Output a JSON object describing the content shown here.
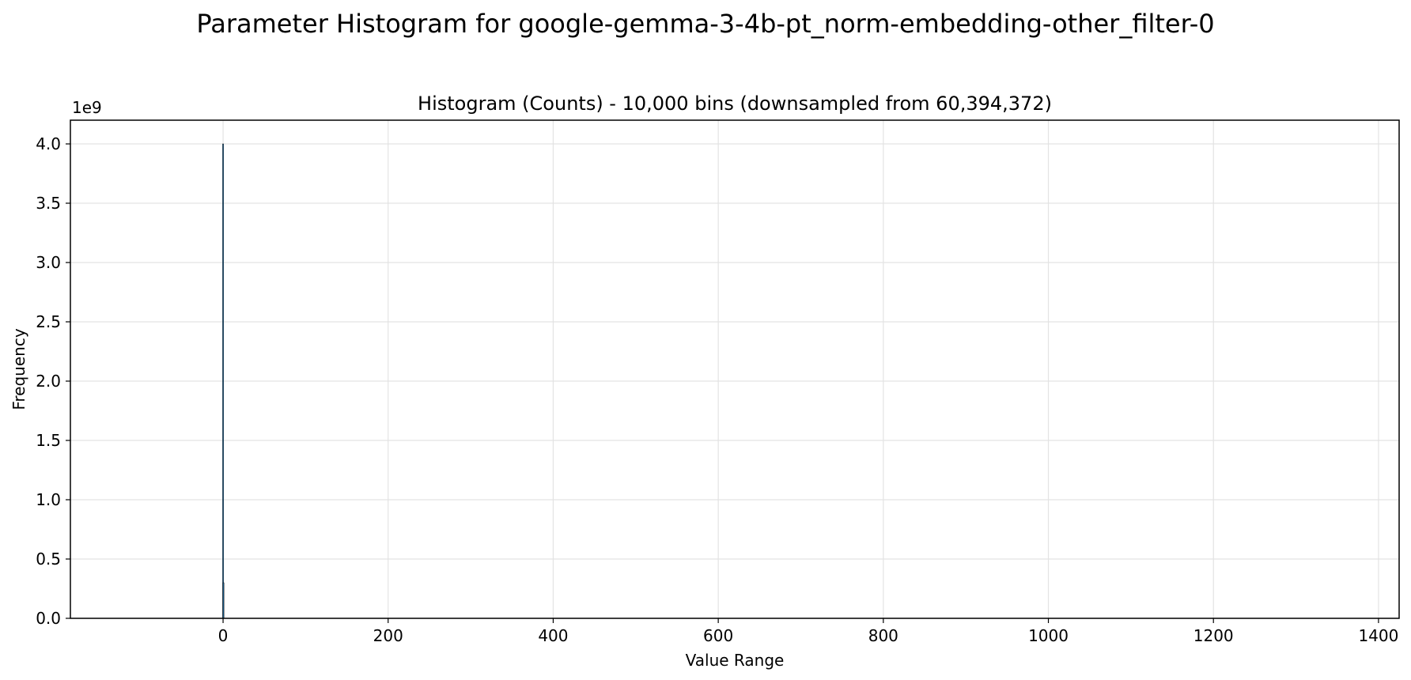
{
  "figure": {
    "title": "Parameter Histogram for google-gemma-3-4b-pt_norm-embedding-other_filter-0"
  },
  "chart_data": {
    "type": "bar",
    "title": "Histogram (Counts) - 10,000 bins (downsampled from 60,394,372)",
    "xlabel": "Value Range",
    "ylabel": "Frequency",
    "y_offset_label": "1e9",
    "xlim": [
      -185,
      1425
    ],
    "ylim": [
      0,
      4200000000
    ],
    "x_ticks": [
      0,
      200,
      400,
      600,
      800,
      1000,
      1200,
      1400
    ],
    "x_tick_labels": [
      "0",
      "200",
      "400",
      "600",
      "800",
      "1000",
      "1200",
      "1400"
    ],
    "y_ticks": [
      0,
      500000000,
      1000000000,
      1500000000,
      2000000000,
      2500000000,
      3000000000,
      3500000000,
      4000000000
    ],
    "y_tick_labels": [
      "0.0",
      "0.5",
      "1.0",
      "1.5",
      "2.0",
      "2.5",
      "3.0",
      "3.5",
      "4.0"
    ],
    "grid": true,
    "bar_color": "#1f77b4",
    "edge_color": "#000000",
    "bins": [
      {
        "x": 0,
        "value": 4000000000
      },
      {
        "x": 0.5,
        "value": 300000000
      }
    ]
  }
}
